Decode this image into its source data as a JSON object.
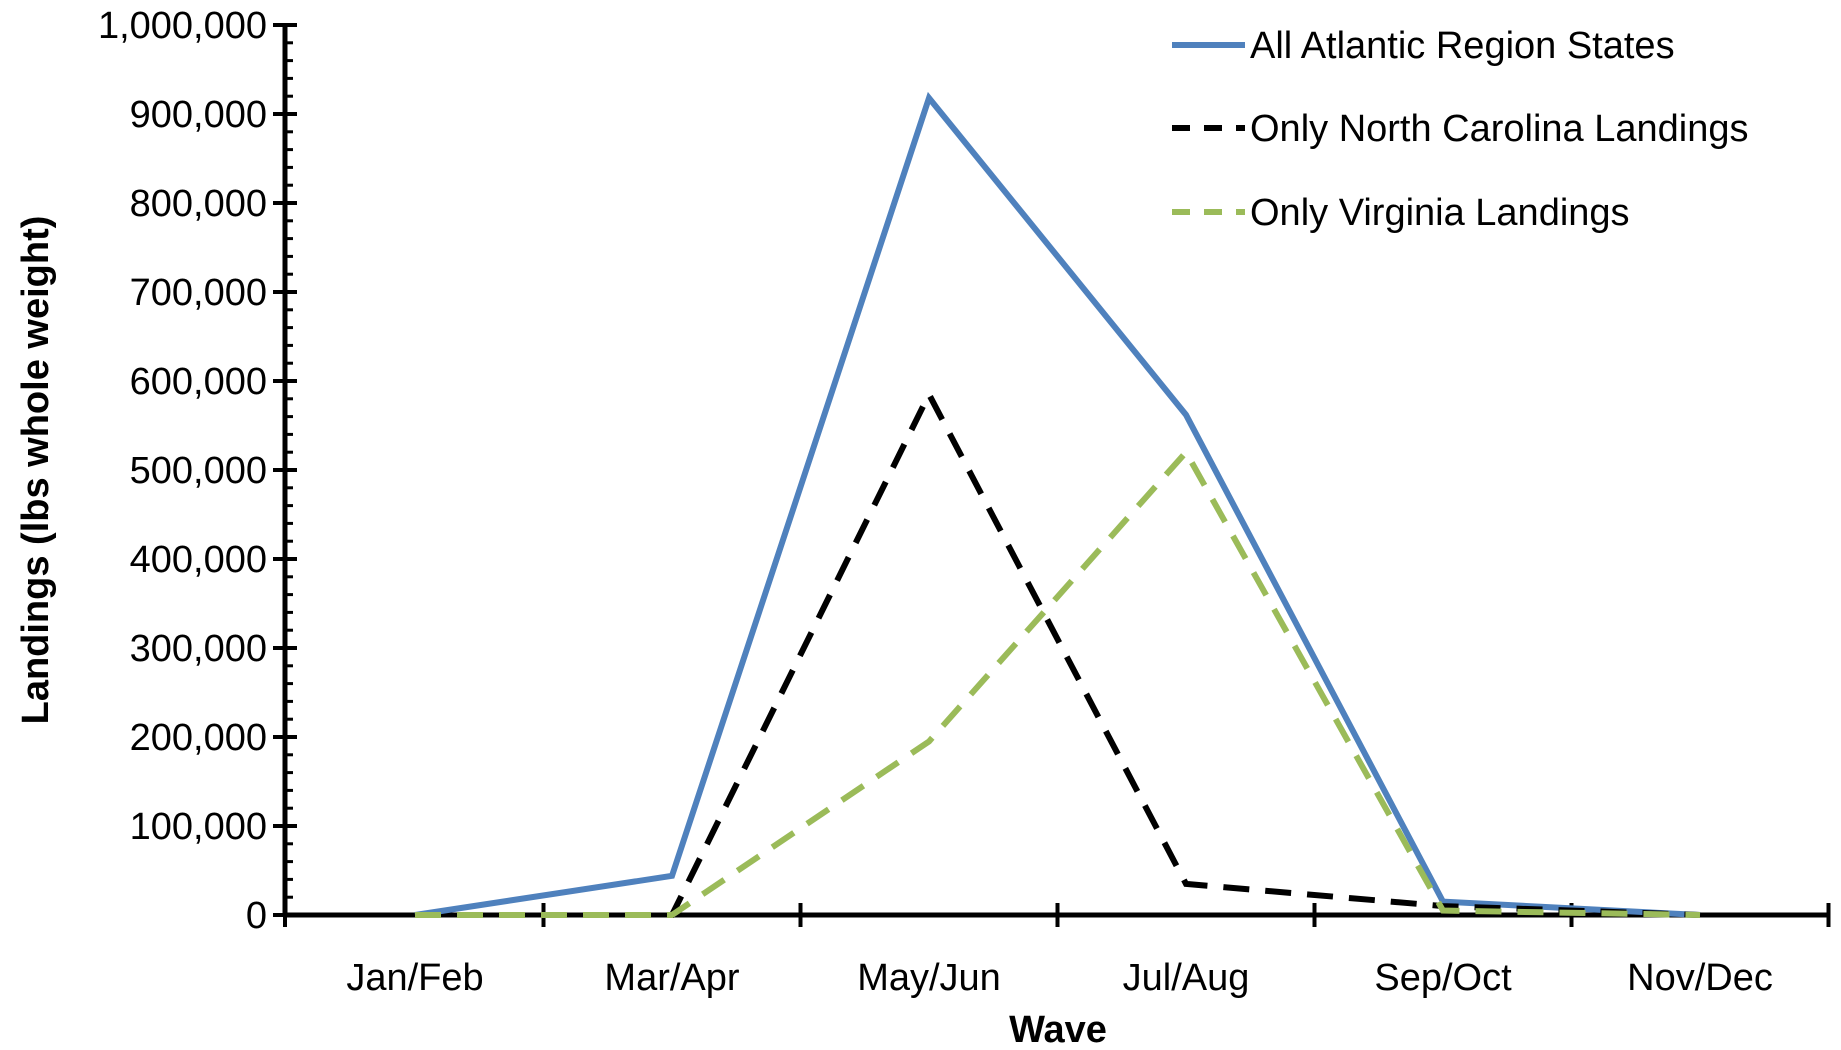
{
  "chart_data": {
    "type": "line",
    "title": "",
    "xlabel": "Wave",
    "ylabel": "Landings (lbs whole weight)",
    "categories": [
      "Jan/Feb",
      "Mar/Apr",
      "May/Jun",
      "Jul/Aug",
      "Sep/Oct",
      "Nov/Dec"
    ],
    "ylim": [
      0,
      1000000
    ],
    "yticks": [
      0,
      100000,
      200000,
      300000,
      400000,
      500000,
      600000,
      700000,
      800000,
      900000,
      1000000
    ],
    "ytick_labels": [
      "0",
      "100,000",
      "200,000",
      "300,000",
      "400,000",
      "500,000",
      "600,000",
      "700,000",
      "800,000",
      "900,000",
      "1,000,000"
    ],
    "grid": false,
    "legend_position": "top-right",
    "series": [
      {
        "name": "All Atlantic Region States",
        "values": [
          0,
          44000,
          918000,
          562000,
          15000,
          0
        ],
        "color": "#4F81BD",
        "style": "solid"
      },
      {
        "name": "Only North Carolina Landings",
        "values": [
          0,
          0,
          585000,
          35000,
          10000,
          0
        ],
        "color": "#000000",
        "style": "dashed"
      },
      {
        "name": "Only Virginia Landings",
        "values": [
          0,
          0,
          195000,
          520000,
          5000,
          0
        ],
        "color": "#9BBB59",
        "style": "dashed"
      }
    ]
  }
}
